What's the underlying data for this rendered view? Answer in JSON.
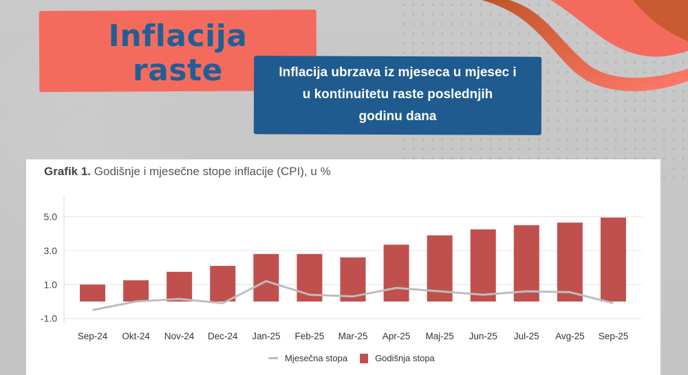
{
  "header": {
    "title_line1": "Inflacija",
    "title_line2": "raste",
    "subtitle_line1": "Inflacija ubrzava iz mjeseca u mjesec i",
    "subtitle_line2": "u kontinuitetu raste poslednjih",
    "subtitle_line3": "godinu dana"
  },
  "colors": {
    "title_box": "#f46b5d",
    "title_text": "#225e96",
    "subtitle_box": "#1f5b8e",
    "bar": "#c0504d",
    "line": "#bdbdbd"
  },
  "chart_card": {
    "title_bold": "Grafik 1.",
    "title_rest": " Godišnje i mjesečne stope inflacije (CPI), u %"
  },
  "legend": {
    "line_label": "Mjesečna stopa",
    "bar_label": "Godišnja stopa"
  },
  "chart_data": {
    "type": "bar",
    "title": "Grafik 1. Godišnje i mjesečne stope inflacije (CPI), u %",
    "xlabel": "",
    "ylabel": "",
    "ylim": [
      -1.2,
      6.4
    ],
    "yticks": [
      -1.0,
      1.0,
      3.0,
      5.0
    ],
    "ytick_labels": [
      "-1.0",
      "1.0",
      "3.0",
      "5.0"
    ],
    "grid": true,
    "legend_position": "bottom",
    "categories": [
      "Sep-24",
      "Okt-24",
      "Nov-24",
      "Dec-24",
      "Jan-25",
      "Feb-25",
      "Mar-25",
      "Apr-25",
      "Maj-25",
      "Jun-25",
      "Jul-25",
      "Avg-25",
      "Sep-25"
    ],
    "series": [
      {
        "name": "Godišnja stopa",
        "type": "bar",
        "values": [
          1.0,
          1.25,
          1.75,
          2.1,
          2.8,
          2.8,
          2.6,
          3.35,
          3.9,
          4.25,
          4.5,
          4.65,
          4.95
        ]
      },
      {
        "name": "Mjesečna stopa",
        "type": "line",
        "values": [
          -0.5,
          0.0,
          0.15,
          -0.1,
          1.2,
          0.4,
          0.3,
          0.8,
          0.6,
          0.4,
          0.6,
          0.55,
          -0.1
        ]
      }
    ]
  }
}
